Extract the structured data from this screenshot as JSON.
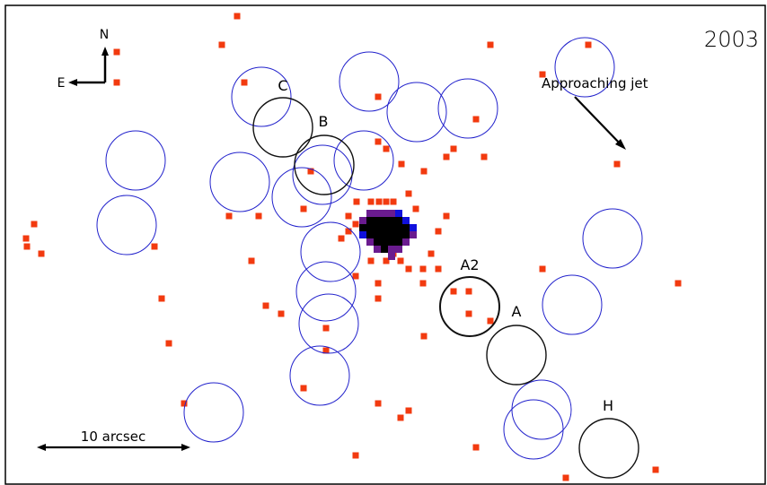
{
  "image": {
    "year": "2003",
    "labels": {
      "compass_north": "N",
      "compass_east": "E",
      "jet": "Approaching jet",
      "scale": "10 arcsec",
      "knots": {
        "a": "A",
        "a2": "A2",
        "b": "B",
        "c": "C",
        "h": "H"
      }
    },
    "colors": {
      "background": "#ffffff",
      "border": "#000000",
      "photon": "#f23a0f",
      "blue_circle": "#2222cc",
      "black_circle": "#111111",
      "core_black": "#000000",
      "core_purple": "#6a1b8f",
      "core_blue": "#1010dd"
    }
  }
}
